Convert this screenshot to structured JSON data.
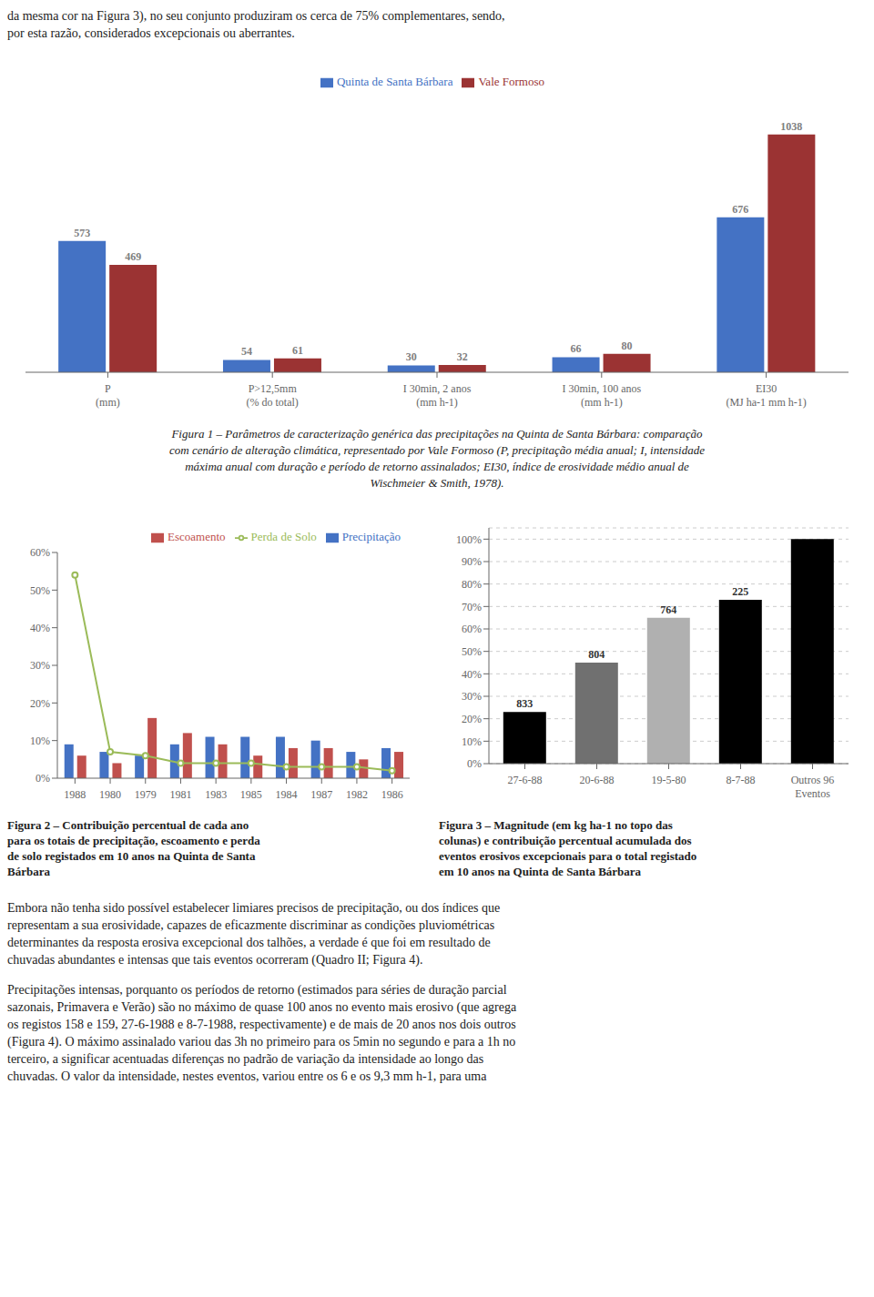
{
  "header_text": [
    "da mesma cor na ​Figura 3​), no seu conjunto produziram os cerca de 75% complementares, sendo,",
    "por esta razão, considerados excepcionais ou aberrantes."
  ],
  "body_text": [
    [
      "Embora não tenha sido possível estabelecer limiares precisos de precipitação, ou dos índices que",
      "representam a sua erosividade, capazes de eficazmente discriminar as condições pluviométricas",
      "determinantes da resposta erosiva excepcional dos talhões, a verdade é que foi em resultado de",
      "chuvadas abundantes e intensas que tais eventos ocorreram (​Quadro II​; ​Figura 4​)."
    ],
    [
      "Precipitações intensas, porquanto os períodos de retorno (estimados para séries de duração parcial",
      "sazonais, Primavera e Verão) são no máximo de quase 100 anos no evento mais erosivo (que agrega",
      "os registos 158 e 159, 27-6-1988 e 8-7-1988, respectivamente) e de mais de 20 anos nos dois outros",
      "(​Figura 4​). O máximo assinalado variou das 3h no primeiro para os 5min no segundo e para a 1h no",
      "terceiro, a significar acentuadas diferenças no padrão de variação da intensidade ao longo das",
      "chuvadas. O valor da intensidade, nestes eventos, variou entre os 6 e os 9,3 mm h-1, para uma"
    ]
  ],
  "chart_data": [
    {
      "type": "bar",
      "title": "Figura 1 – Parâmetros de caracterização genérica das precipitações na Quinta de Santa Bárbara: comparação\ncom cenário de alteração climática, representado por Vale Formoso (P, precipitação média anual; I, intensidade\nmáxima anual com duração e período de retorno assinalados; EI30, índice de erosividade médio anual de\nWischmeier & Smith, 1978).",
      "categories": [
        "P\n(mm)",
        "P>12,5mm\n(% do total)",
        "I 30min, 2 anos\n(mm h-1)",
        "I 30min, 100 anos\n(mm h-1)",
        "EI30\n(MJ ha-1 mm h-1)"
      ],
      "series": [
        {
          "name": "Quinta de Santa Bárbara",
          "color": "#4472C4",
          "values": [
            573,
            54,
            30,
            66,
            676
          ]
        },
        {
          "name": "Vale Formoso",
          "color": "#9B3333",
          "values": [
            469,
            61,
            32,
            80,
            1038
          ]
        }
      ],
      "ylim": [
        0,
        1200
      ],
      "tick_labels": "x",
      "data_labels": true,
      "legend": "upper center",
      "grid": false
    },
    {
      "type": "bar",
      "title": "Figura 2 – Contribuição percentual de cada ano\npara os totais de precipitação, escoamento e perda\nde solo registados em 10 anos na Quinta de Santa\nBárbara",
      "categories": [
        "1988",
        "1980",
        "1979",
        "1981",
        "1983",
        "1985",
        "1984",
        "1987",
        "1982",
        "1986"
      ],
      "series": [
        {
          "name": "Precipitação",
          "type": "bar",
          "color": "#4472C4",
          "values": [
            9,
            7,
            6,
            9,
            11,
            11,
            11,
            10,
            7,
            8
          ]
        },
        {
          "name": "Escoamento",
          "type": "bar",
          "color": "#C0504D",
          "values": [
            6,
            4,
            16,
            12,
            9,
            6,
            8,
            8,
            5,
            7
          ]
        },
        {
          "name": "Perda de Solo",
          "type": "line",
          "color": "#9BBB59",
          "values": [
            54,
            7,
            6,
            4,
            4,
            4,
            3,
            3,
            3,
            2
          ]
        }
      ],
      "ylim": [
        0,
        60
      ],
      "yticks": [
        {
          "value": 0,
          "label": "0%"
        },
        {
          "value": 10,
          "label": "10%"
        },
        {
          "value": 20,
          "label": "20%"
        },
        {
          "value": 30,
          "label": "30%"
        },
        {
          "value": 40,
          "label": "40%"
        },
        {
          "value": 50,
          "label": "50%"
        },
        {
          "value": 60,
          "label": "60%"
        }
      ],
      "legend": "upper right",
      "grid": false
    },
    {
      "type": "bar",
      "title": "Figura 3 – Magnitude (em kg ha-1 no topo das\ncolunas) e contribuição percentual acumulada dos\neventos erosivos excepcionais para o total registado\nem 10 anos na Quinta de Santa Bárbara",
      "categories": [
        "27-6-88",
        "20-6-88",
        "19-5-80",
        "8-7-88",
        "Outros 96\nEventos"
      ],
      "values": [
        23,
        45,
        65,
        73,
        100
      ],
      "colors": [
        "#000000",
        "#707070",
        "#B0B0B0",
        "#000000",
        "#000000"
      ],
      "magnitudes": [
        833,
        804,
        764,
        225,
        null
      ],
      "ylim": [
        0,
        105
      ],
      "yticks": [
        {
          "value": 0,
          "label": "0%"
        },
        {
          "value": 10,
          "label": "10%"
        },
        {
          "value": 20,
          "label": "20%"
        },
        {
          "value": 30,
          "label": "30%"
        },
        {
          "value": 40,
          "label": "40%"
        },
        {
          "value": 50,
          "label": "50%"
        },
        {
          "value": 60,
          "label": "60%"
        },
        {
          "value": 70,
          "label": "70%"
        },
        {
          "value": 80,
          "label": "80%"
        },
        {
          "value": 90,
          "label": "90%"
        },
        {
          "value": 100,
          "label": "100%"
        }
      ],
      "grid": true
    }
  ]
}
